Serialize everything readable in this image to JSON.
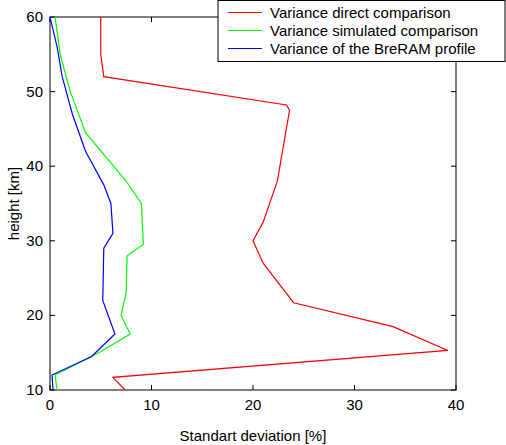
{
  "chart_data": {
    "type": "line",
    "x_label": "Standart deviation [%]",
    "y_label": "height [km]",
    "xlim": [
      0,
      40
    ],
    "xticks": [
      0,
      10,
      20,
      30,
      40
    ],
    "ylim": [
      10,
      60
    ],
    "yticks": [
      10,
      20,
      30,
      40,
      50,
      60
    ],
    "legend": "upper right",
    "series": [
      {
        "name": "Variance direct comparison",
        "color": "#ff0000",
        "x": [
          7.4,
          6.2,
          39.2,
          33.8,
          24,
          21,
          20,
          21,
          22.4,
          23.6,
          23.3,
          5.3,
          5,
          5
        ],
        "values": [
          10,
          11.7,
          15.3,
          18.5,
          21.7,
          27,
          30,
          32.5,
          38,
          47.5,
          48.2,
          52,
          55,
          60
        ]
      },
      {
        "name": "Variance simulated comparison",
        "color": "#00ff00",
        "x": [
          0.7,
          0.5,
          4.8,
          7.9,
          7,
          7.5,
          7.6,
          9.2,
          9,
          7.5,
          3.5,
          2,
          1,
          0.5
        ],
        "values": [
          10,
          12,
          15,
          17.5,
          20,
          23,
          28,
          29.5,
          35,
          38,
          44.5,
          50,
          55,
          60
        ]
      },
      {
        "name": "Variance of the BreRAM profile",
        "color": "#0000ff",
        "x": [
          0.3,
          0.2,
          4.1,
          6.4,
          5.2,
          5.3,
          6.2,
          6,
          5.3,
          3.5,
          2.2,
          1.2,
          0.7,
          0
        ],
        "values": [
          10,
          12,
          14.5,
          17.5,
          22,
          29,
          31,
          35,
          37.5,
          42,
          47,
          52,
          56,
          60
        ]
      }
    ]
  }
}
